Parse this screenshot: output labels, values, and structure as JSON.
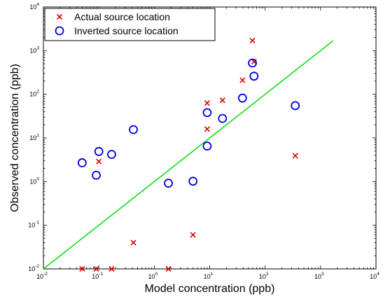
{
  "chart_data": {
    "type": "scatter",
    "xscale": "log",
    "yscale": "log",
    "xlim": [
      0.01,
      10000
    ],
    "ylim": [
      0.01,
      10000
    ],
    "xlabel": "Model concentration (ppb)",
    "ylabel": "Observed concentration (ppb)",
    "x_ticks": [
      "10^-2",
      "10^-1",
      "10^0",
      "10^1",
      "10^2",
      "10^3",
      "10^4"
    ],
    "y_ticks": [
      "10^-2",
      "10^-1",
      "10^0",
      "10^1",
      "10^2",
      "10^3",
      "10^4"
    ],
    "legend_position": "top-left",
    "grid": false,
    "reference_line": {
      "x": [
        0.01,
        1700
      ],
      "y": [
        0.01,
        1700
      ],
      "color": "#00dd00"
    },
    "series": [
      {
        "name": "Actual source location",
        "marker": "x",
        "color": "#dd0000",
        "points": [
          {
            "x": 0.05,
            "y": 0.01
          },
          {
            "x": 0.09,
            "y": 0.01
          },
          {
            "x": 0.1,
            "y": 2.9
          },
          {
            "x": 0.17,
            "y": 0.01
          },
          {
            "x": 0.42,
            "y": 0.04
          },
          {
            "x": 1.8,
            "y": 0.01
          },
          {
            "x": 5.0,
            "y": 0.06
          },
          {
            "x": 9.0,
            "y": 16
          },
          {
            "x": 9.0,
            "y": 63
          },
          {
            "x": 17,
            "y": 73
          },
          {
            "x": 39,
            "y": 210
          },
          {
            "x": 59,
            "y": 1700
          },
          {
            "x": 63,
            "y": 560
          },
          {
            "x": 350,
            "y": 3.9
          }
        ]
      },
      {
        "name": "Inverted source location",
        "marker": "o",
        "color": "#0000dd",
        "points": [
          {
            "x": 0.05,
            "y": 2.7
          },
          {
            "x": 0.09,
            "y": 1.4
          },
          {
            "x": 0.1,
            "y": 4.9
          },
          {
            "x": 0.17,
            "y": 4.2
          },
          {
            "x": 0.42,
            "y": 15.5
          },
          {
            "x": 1.8,
            "y": 0.92
          },
          {
            "x": 5.0,
            "y": 1.02
          },
          {
            "x": 9.0,
            "y": 6.5
          },
          {
            "x": 9.0,
            "y": 38
          },
          {
            "x": 17,
            "y": 28
          },
          {
            "x": 39,
            "y": 82
          },
          {
            "x": 59,
            "y": 520
          },
          {
            "x": 63,
            "y": 260
          },
          {
            "x": 350,
            "y": 55
          }
        ]
      }
    ]
  },
  "colors": {
    "actual": "#dd0000",
    "inverted": "#0000dd",
    "reference_line": "#00dd00"
  }
}
